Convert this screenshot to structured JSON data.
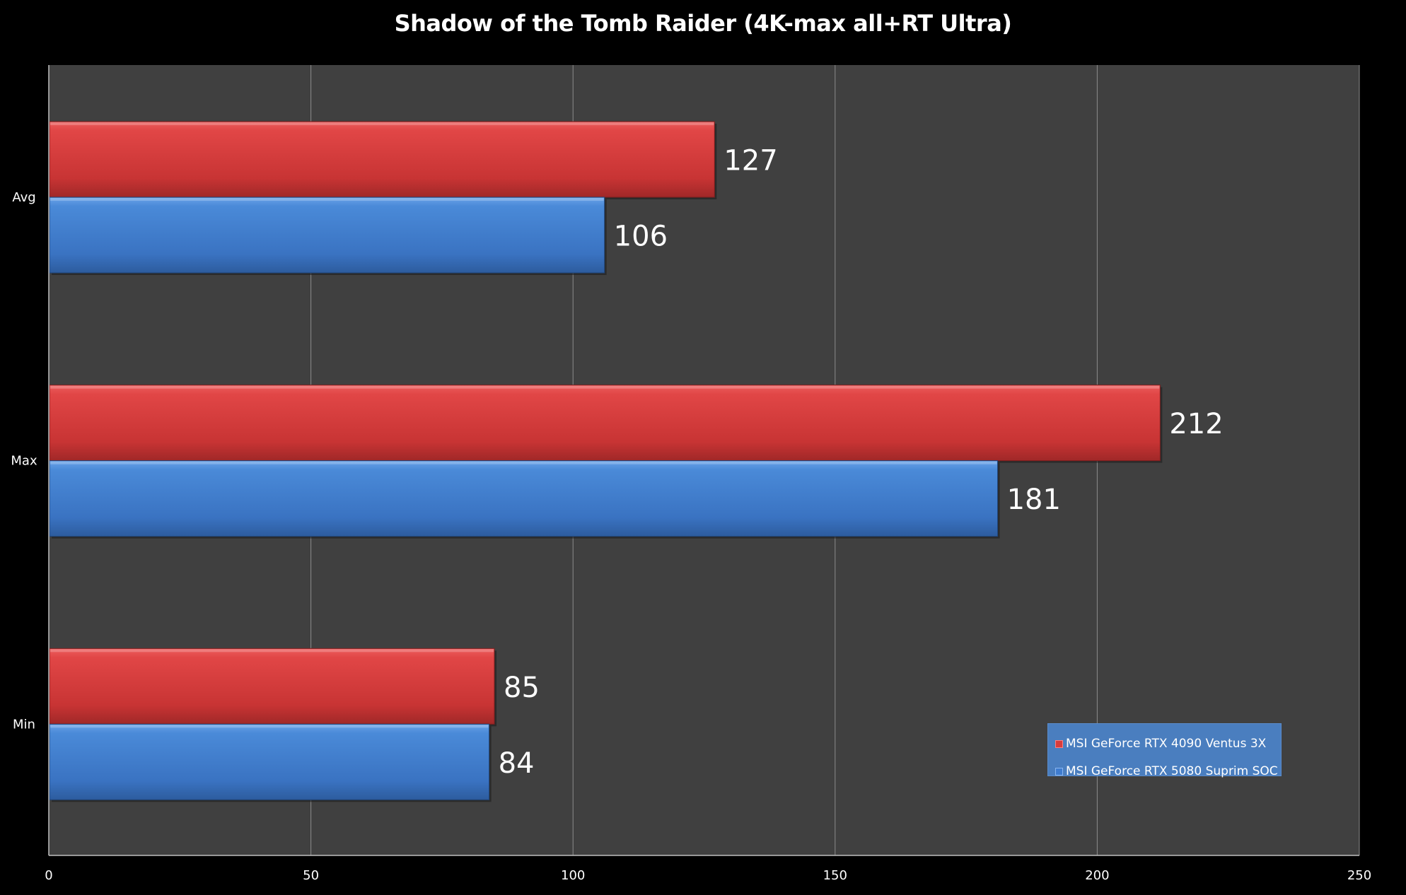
{
  "chart_data": {
    "type": "bar",
    "orientation": "horizontal",
    "title": "Shadow of the Tomb Raider (4K-max all+RT Ultra)",
    "categories": [
      "Avg",
      "Max",
      "Min"
    ],
    "series": [
      {
        "name": "MSI GeForce RTX 4090 Ventus 3X",
        "values": [
          127,
          212,
          85
        ],
        "color": "#d83c3c"
      },
      {
        "name": "MSI GeForce RTX 5080 Suprim SOC",
        "values": [
          106,
          181,
          84
        ],
        "color": "#3f7ccf"
      }
    ],
    "xlim": [
      0,
      250
    ],
    "xticks": [
      "0",
      "50",
      "100",
      "150",
      "200",
      "250"
    ],
    "grid": true,
    "legend_position": "bottom-right",
    "data_labels": true,
    "plot_background": "#404040",
    "page_background": "#000000"
  }
}
